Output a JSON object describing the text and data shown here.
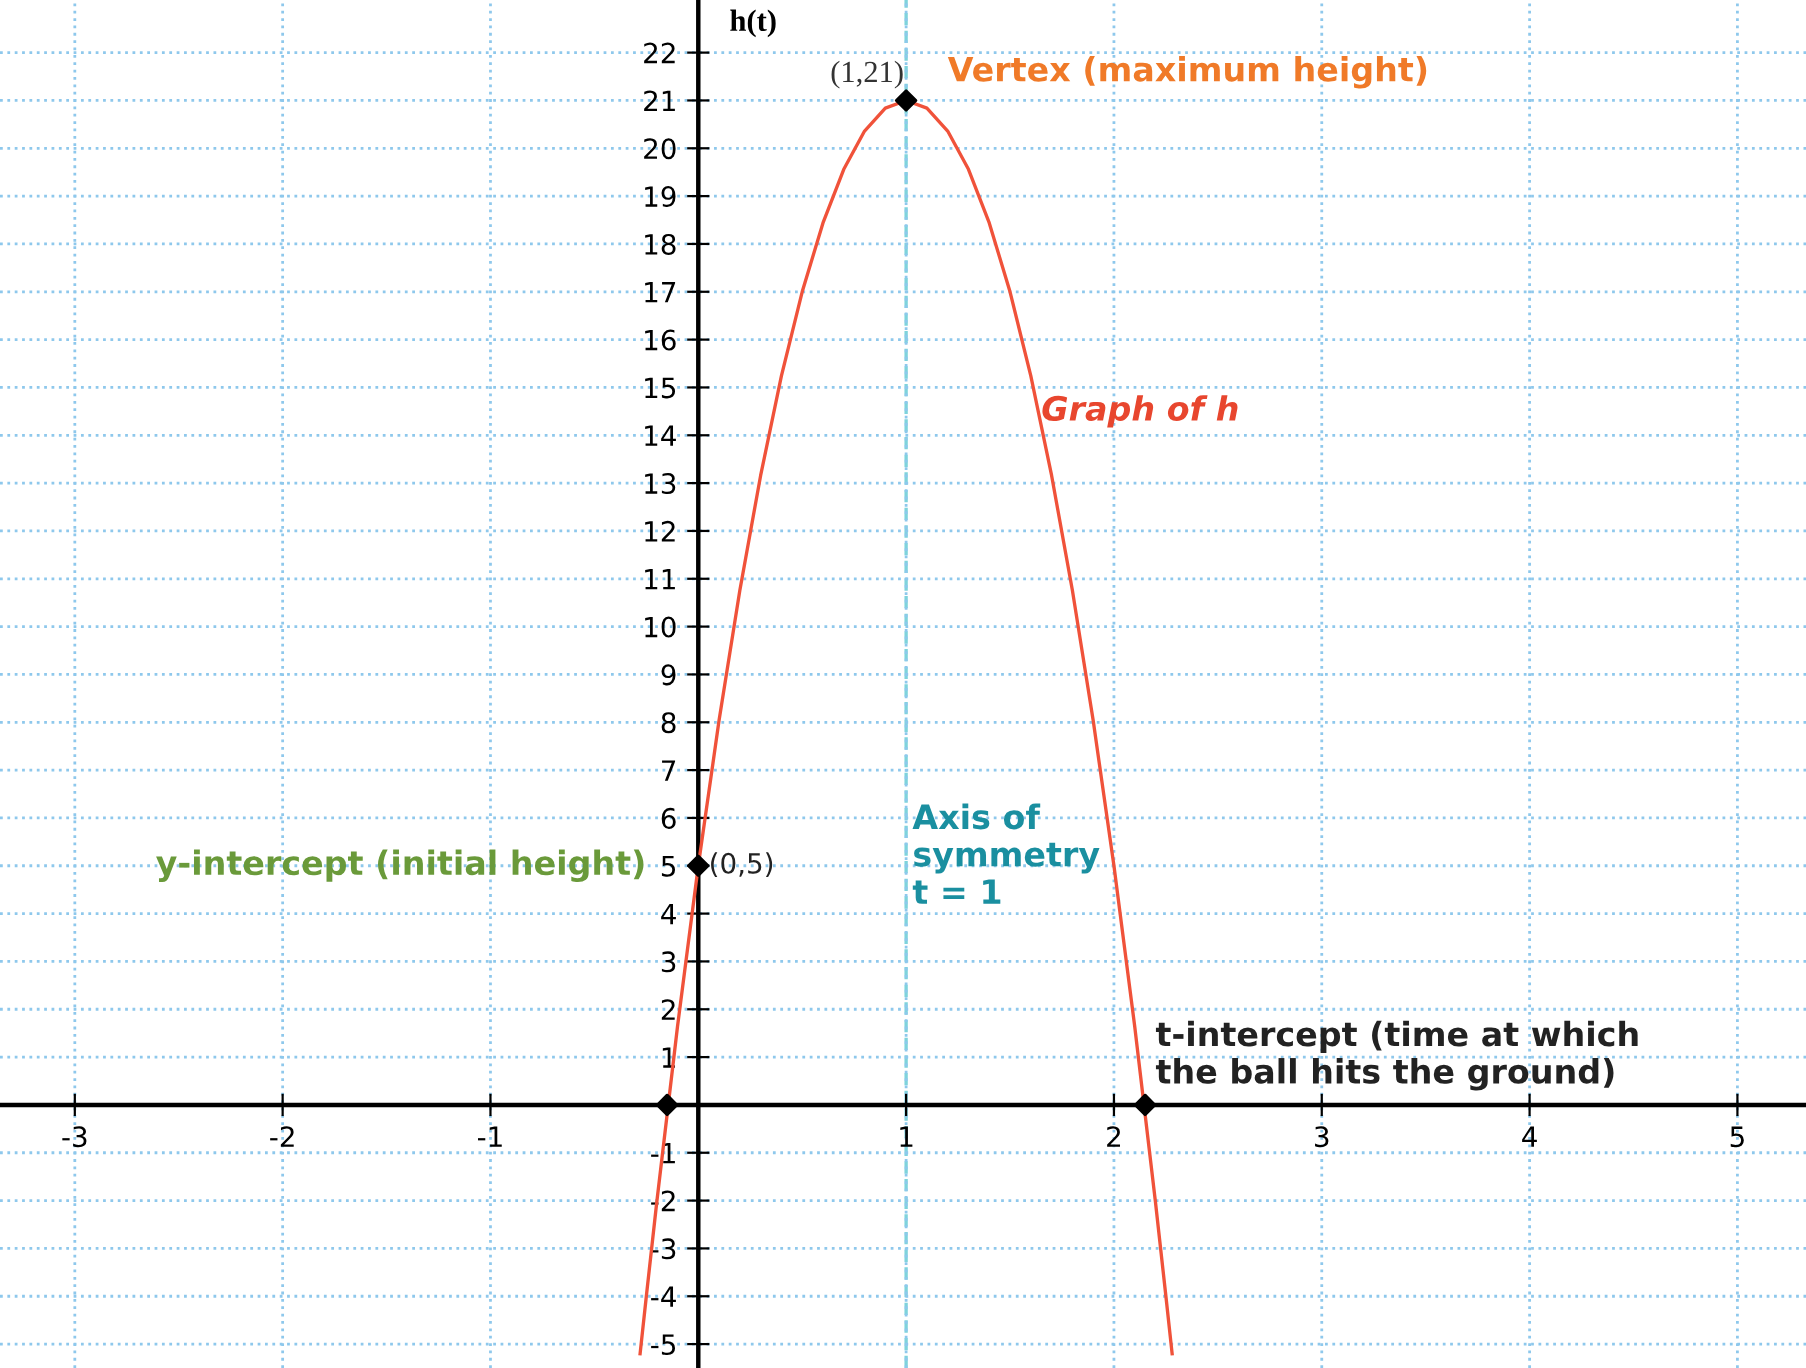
{
  "chart_data": {
    "type": "line",
    "ylabel": "h(t)",
    "xlim": [
      -3.36,
      5.33
    ],
    "ylim": [
      -5.5,
      23.1
    ],
    "xticks": [
      -3,
      -2,
      -1,
      1,
      2,
      3,
      4,
      5
    ],
    "yticks": [
      -5,
      -4,
      -3,
      -2,
      -1,
      1,
      2,
      3,
      4,
      5,
      6,
      7,
      8,
      9,
      10,
      11,
      12,
      13,
      14,
      15,
      16,
      17,
      18,
      19,
      20,
      21,
      22
    ],
    "grid": true,
    "legend": false,
    "series": [
      {
        "color": "#f0523a",
        "marker": "none",
        "line_style": "solid",
        "x": [
          -0.28,
          -0.25,
          -0.2,
          -0.1,
          0,
          0.1,
          0.2,
          0.3,
          0.4,
          0.5,
          0.6,
          0.7,
          0.8,
          0.9,
          1,
          1.1,
          1.2,
          1.3,
          1.4,
          1.5,
          1.6,
          1.7,
          1.8,
          1.9,
          2.0,
          2.1,
          2.2,
          2.25,
          2.28
        ],
        "values": [
          -5.2,
          -4,
          -2.04,
          1.64,
          5,
          8.04,
          10.76,
          13.16,
          15.24,
          17,
          18.44,
          19.56,
          20.36,
          20.84,
          21,
          20.84,
          20.36,
          19.56,
          18.44,
          17,
          15.24,
          13.16,
          10.76,
          8.04,
          5,
          1.64,
          -2.04,
          -4,
          -5.2
        ]
      },
      {
        "type": "scatter",
        "color": "#000000",
        "marker": "diamond",
        "x": [
          -0.15,
          0,
          1,
          2.15
        ],
        "values": [
          0,
          5,
          21,
          0
        ]
      }
    ],
    "ref_lines": [
      {
        "axis": "x",
        "value": 1,
        "label": "Axis of\nsymmetry\nt = 1",
        "color": "#7fd3dc",
        "line_style": "dashed"
      }
    ],
    "annotations": [
      {
        "text": "(1,21)",
        "x": 1,
        "y": 21
      },
      {
        "text": "Vertex (maximum height)",
        "x": 1,
        "y": 21
      },
      {
        "text": "Graph of h",
        "x": 1.65,
        "y": 14.5
      },
      {
        "text": "(0,5)",
        "x": 0,
        "y": 5
      },
      {
        "text": "y-intercept (initial height)",
        "x": 0,
        "y": 5
      },
      {
        "text": "t-intercept (time at which\nthe ball hits the ground)",
        "x": 2.15,
        "y": 0
      }
    ]
  }
}
